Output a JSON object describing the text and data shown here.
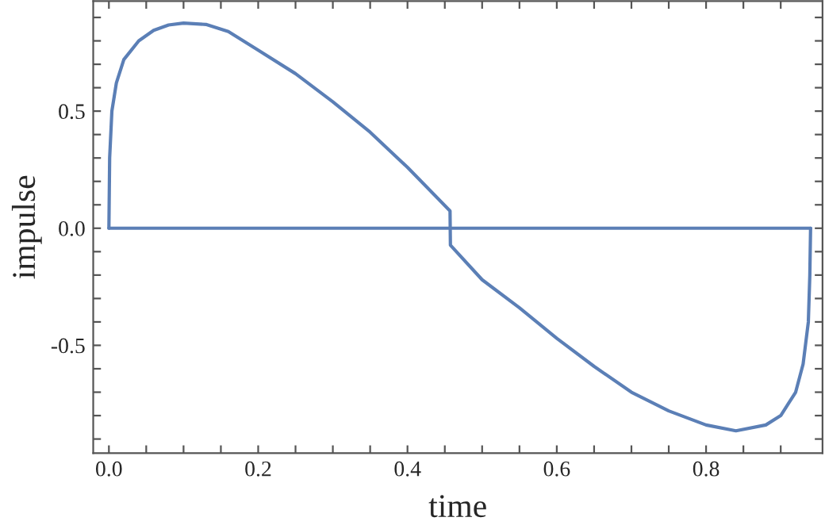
{
  "chart_data": {
    "type": "line",
    "xlabel": "time",
    "ylabel": "impulse",
    "series": [
      {
        "color": "#5b7fb6",
        "x": [
          0,
          0.0005,
          0.001,
          0.004,
          0.01,
          0.02,
          0.04,
          0.06,
          0.08,
          0.1,
          0.13,
          0.16,
          0.2,
          0.25,
          0.3,
          0.35,
          0.4,
          0.457,
          0.4575,
          0.5,
          0.55,
          0.6,
          0.65,
          0.7,
          0.75,
          0.8,
          0.84,
          0.88,
          0.9,
          0.92,
          0.93,
          0.937,
          0.939,
          0.94
        ],
        "values": [
          0,
          0.15,
          0.3,
          0.5,
          0.62,
          0.72,
          0.8,
          0.845,
          0.868,
          0.876,
          0.87,
          0.84,
          0.76,
          0.66,
          0.54,
          0.41,
          0.26,
          0.074,
          -0.072,
          -0.22,
          -0.34,
          -0.47,
          -0.59,
          -0.7,
          -0.78,
          -0.84,
          -0.865,
          -0.84,
          -0.8,
          -0.7,
          -0.58,
          -0.4,
          -0.2,
          0
        ]
      },
      {
        "color": "#5b7fb6",
        "x": [
          0,
          0.94
        ],
        "values": [
          0,
          0
        ]
      }
    ],
    "xlim": [
      -0.021,
      0.956
    ],
    "ylim": [
      -0.96,
      0.97
    ],
    "xticks": [
      {
        "value": 0,
        "label": "0.0"
      },
      {
        "value": 0.05,
        "label": null
      },
      0.2,
      {
        "value": 0.1,
        "label": null
      },
      {
        "value": 0.15,
        "label": null
      },
      {
        "value": 0.25,
        "label": null
      },
      {
        "value": 0.3,
        "label": null
      },
      {
        "value": 0.35,
        "label": null
      },
      0.4,
      {
        "value": 0.45,
        "label": null
      },
      {
        "value": 0.5,
        "label": null
      },
      {
        "value": 0.55,
        "label": null
      },
      0.6,
      {
        "value": 0.65,
        "label": null
      },
      {
        "value": 0.7,
        "label": null
      },
      {
        "value": 0.75,
        "label": null
      },
      0.8,
      {
        "value": 0.85,
        "label": null
      },
      {
        "value": 0.9,
        "label": null
      }
    ],
    "yticks": [
      -0.5,
      {
        "value": 0,
        "label": "0.0"
      },
      0.5,
      {
        "value": -0.9,
        "label": null
      },
      {
        "value": -0.8,
        "label": null
      },
      {
        "value": -0.7,
        "label": null
      },
      {
        "value": -0.6,
        "label": null
      },
      {
        "value": -0.4,
        "label": null
      },
      {
        "value": -0.3,
        "label": null
      },
      {
        "value": -0.2,
        "label": null
      },
      {
        "value": -0.1,
        "label": null
      },
      {
        "value": 0.1,
        "label": null
      },
      {
        "value": 0.2,
        "label": null
      },
      {
        "value": 0.3,
        "label": null
      },
      {
        "value": 0.4,
        "label": null
      },
      {
        "value": 0.6,
        "label": null
      },
      {
        "value": 0.7,
        "label": null
      },
      {
        "value": 0.8,
        "label": null
      },
      {
        "value": 0.9,
        "label": null
      }
    ],
    "grid": false,
    "line_style": "solid",
    "marker": "none"
  }
}
